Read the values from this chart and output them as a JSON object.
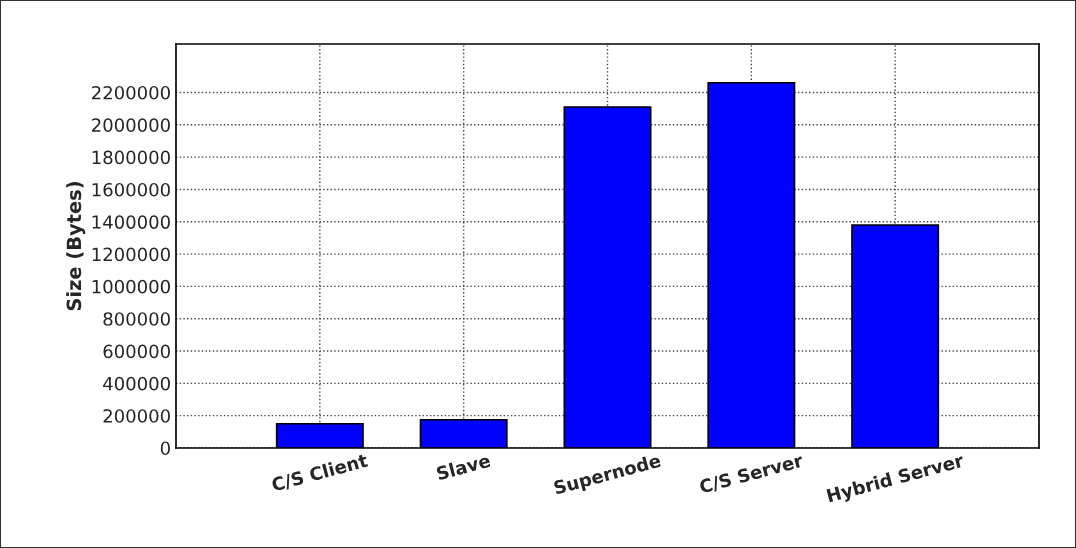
{
  "chart_data": {
    "type": "bar",
    "ylabel": "Size (Bytes)",
    "categories": [
      "C/S Client",
      "Slave",
      "Supernode",
      "C/S Server",
      "Hybrid Server"
    ],
    "values": [
      150000,
      175000,
      2110000,
      2260000,
      1380000
    ],
    "color": "#0000ff",
    "ylim": [
      0,
      2500000
    ],
    "yticks": [
      0,
      200000,
      400000,
      600000,
      800000,
      1000000,
      1200000,
      1400000,
      1600000,
      1800000,
      2000000,
      2200000
    ],
    "grid": true
  }
}
